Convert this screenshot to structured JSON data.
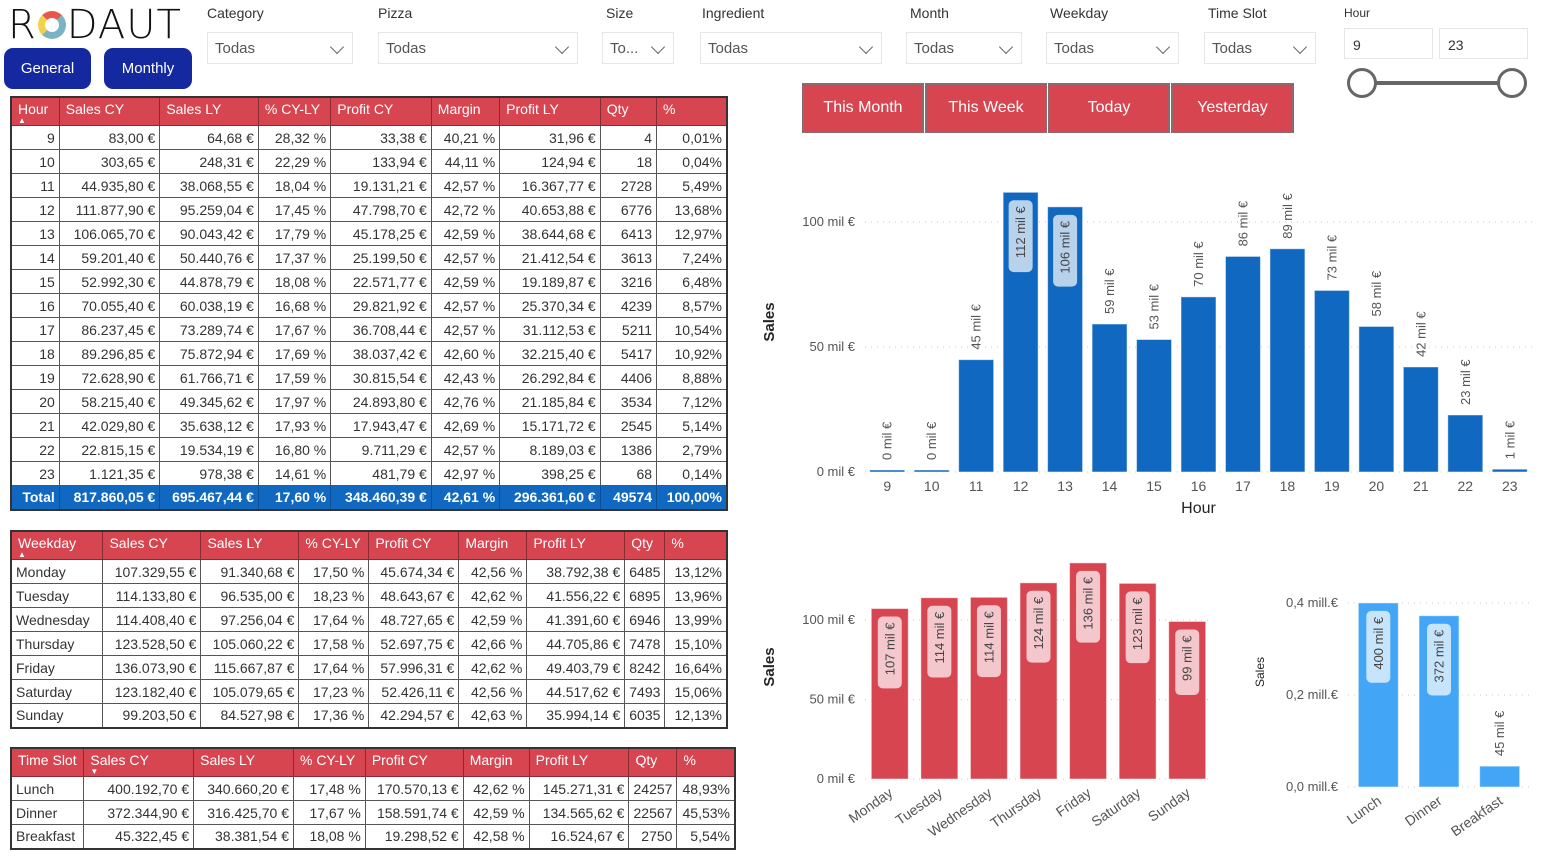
{
  "app": {
    "logo_prefix": "R",
    "logo_suffix": "DAUT"
  },
  "nav": {
    "general": "General",
    "monthly": "Monthly"
  },
  "filters": [
    {
      "label": "Category",
      "value": "Todas"
    },
    {
      "label": "Pizza",
      "value": "Todas"
    },
    {
      "label": "Size",
      "value": "To..."
    },
    {
      "label": "Ingredient",
      "value": "Todas"
    },
    {
      "label": "Month",
      "value": "Todas"
    },
    {
      "label": "Weekday",
      "value": "Todas"
    },
    {
      "label": "Time Slot",
      "value": "Todas"
    }
  ],
  "hour_slider": {
    "label": "Hour",
    "min_value": "9",
    "max_value": "23",
    "min": 9,
    "max": 23
  },
  "quick_buttons": [
    "This Month",
    "This Week",
    "Today",
    "Yesterday"
  ],
  "hour_table": {
    "columns": [
      "Hour",
      "Sales CY",
      "Sales LY",
      "% CY-LY",
      "Profit CY",
      "Margin",
      "Profit LY",
      "Qty",
      "%"
    ],
    "sort_indicator": "▲",
    "rows": [
      [
        "9",
        "83,00 €",
        "64,68 €",
        "28,32 %",
        "33,38 €",
        "40,21 %",
        "31,96 €",
        "4",
        "0,01%"
      ],
      [
        "10",
        "303,65 €",
        "248,31 €",
        "22,29 %",
        "133,94 €",
        "44,11 %",
        "124,94 €",
        "18",
        "0,04%"
      ],
      [
        "11",
        "44.935,80 €",
        "38.068,55 €",
        "18,04 %",
        "19.131,21 €",
        "42,57 %",
        "16.367,77 €",
        "2728",
        "5,49%"
      ],
      [
        "12",
        "111.877,90 €",
        "95.259,04 €",
        "17,45 %",
        "47.798,70 €",
        "42,72 %",
        "40.653,88 €",
        "6776",
        "13,68%"
      ],
      [
        "13",
        "106.065,70 €",
        "90.043,42 €",
        "17,79 %",
        "45.178,25 €",
        "42,59 %",
        "38.644,68 €",
        "6413",
        "12,97%"
      ],
      [
        "14",
        "59.201,40 €",
        "50.440,76 €",
        "17,37 %",
        "25.199,50 €",
        "42,57 %",
        "21.412,54 €",
        "3613",
        "7,24%"
      ],
      [
        "15",
        "52.992,30 €",
        "44.878,79 €",
        "18,08 %",
        "22.571,77 €",
        "42,59 %",
        "19.189,87 €",
        "3216",
        "6,48%"
      ],
      [
        "16",
        "70.055,40 €",
        "60.038,19 €",
        "16,68 %",
        "29.821,92 €",
        "42,57 %",
        "25.370,34 €",
        "4239",
        "8,57%"
      ],
      [
        "17",
        "86.237,45 €",
        "73.289,74 €",
        "17,67 %",
        "36.708,44 €",
        "42,57 %",
        "31.112,53 €",
        "5211",
        "10,54%"
      ],
      [
        "18",
        "89.296,85 €",
        "75.872,94 €",
        "17,69 %",
        "38.037,42 €",
        "42,60 %",
        "32.215,40 €",
        "5417",
        "10,92%"
      ],
      [
        "19",
        "72.628,90 €",
        "61.766,71 €",
        "17,59 %",
        "30.815,54 €",
        "42,43 %",
        "26.292,84 €",
        "4406",
        "8,88%"
      ],
      [
        "20",
        "58.215,40 €",
        "49.345,62 €",
        "17,97 %",
        "24.893,80 €",
        "42,76 %",
        "21.185,84 €",
        "3534",
        "7,12%"
      ],
      [
        "21",
        "42.029,80 €",
        "35.638,12 €",
        "17,93 %",
        "17.943,47 €",
        "42,69 %",
        "15.171,72 €",
        "2545",
        "5,14%"
      ],
      [
        "22",
        "22.815,15 €",
        "19.534,19 €",
        "16,80 %",
        "9.711,29 €",
        "42,57 %",
        "8.189,03 €",
        "1386",
        "2,79%"
      ],
      [
        "23",
        "1.121,35 €",
        "978,38 €",
        "14,61 %",
        "481,79 €",
        "42,97 %",
        "398,25 €",
        "68",
        "0,14%"
      ]
    ],
    "total": [
      "Total",
      "817.860,05 €",
      "695.467,44 €",
      "17,60 %",
      "348.460,39 €",
      "42,61 %",
      "296.361,60 €",
      "49574",
      "100,00%"
    ]
  },
  "weekday_table": {
    "columns": [
      "Weekday",
      "Sales CY",
      "Sales LY",
      "% CY-LY",
      "Profit CY",
      "Margin",
      "Profit LY",
      "Qty",
      "%"
    ],
    "sort_indicator": "▲",
    "rows": [
      [
        "Monday",
        "107.329,55 €",
        "91.340,68 €",
        "17,50 %",
        "45.674,34 €",
        "42,56 %",
        "38.792,38 €",
        "6485",
        "13,12%"
      ],
      [
        "Tuesday",
        "114.133,80 €",
        "96.535,00 €",
        "18,23 %",
        "48.643,67 €",
        "42,62 %",
        "41.556,22 €",
        "6895",
        "13,96%"
      ],
      [
        "Wednesday",
        "114.408,40 €",
        "97.256,04 €",
        "17,64 %",
        "48.727,65 €",
        "42,59 %",
        "41.391,60 €",
        "6946",
        "13,99%"
      ],
      [
        "Thursday",
        "123.528,50 €",
        "105.060,22 €",
        "17,58 %",
        "52.697,75 €",
        "42,66 %",
        "44.705,86 €",
        "7478",
        "15,10%"
      ],
      [
        "Friday",
        "136.073,90 €",
        "115.667,87 €",
        "17,64 %",
        "57.996,31 €",
        "42,62 %",
        "49.403,79 €",
        "8242",
        "16,64%"
      ],
      [
        "Saturday",
        "123.182,40 €",
        "105.079,65 €",
        "17,23 %",
        "52.426,11 €",
        "42,56 %",
        "44.517,62 €",
        "7493",
        "15,06%"
      ],
      [
        "Sunday",
        "99.203,50 €",
        "84.527,98 €",
        "17,36 %",
        "42.294,57 €",
        "42,63 %",
        "35.994,14 €",
        "6035",
        "12,13%"
      ]
    ]
  },
  "timeslot_table": {
    "columns": [
      "Time Slot",
      "Sales CY",
      "Sales LY",
      "% CY-LY",
      "Profit CY",
      "Margin",
      "Profit LY",
      "Qty",
      "%"
    ],
    "sort_indicator": "▼",
    "rows": [
      [
        "Lunch",
        "400.192,70 €",
        "340.660,20 €",
        "17,48 %",
        "170.570,13 €",
        "42,62 %",
        "145.271,31 €",
        "24257",
        "48,93%"
      ],
      [
        "Dinner",
        "372.344,90 €",
        "316.425,70 €",
        "17,67 %",
        "158.591,74 €",
        "42,59 %",
        "134.565,62 €",
        "22567",
        "45,53%"
      ],
      [
        "Breakfast",
        "45.322,45 €",
        "38.381,54 €",
        "18,08 %",
        "19.298,52 €",
        "42,58 %",
        "16.524,67 €",
        "2750",
        "5,54%"
      ]
    ]
  },
  "chart_data": [
    {
      "id": "hour",
      "type": "bar",
      "title": "",
      "xlabel": "Hour",
      "ylabel": "Sales",
      "categories": [
        "9",
        "10",
        "11",
        "12",
        "13",
        "14",
        "15",
        "16",
        "17",
        "18",
        "19",
        "20",
        "21",
        "22",
        "23"
      ],
      "values": [
        83.0,
        303.65,
        44935.8,
        111877.9,
        106065.7,
        59201.4,
        52992.3,
        70055.4,
        86237.45,
        89296.85,
        72628.9,
        58215.4,
        42029.8,
        22815.15,
        1121.35
      ],
      "labels": [
        "0 mil €",
        "0 mil €",
        "45 mil €",
        "112 mil €",
        "106 mil €",
        "59 mil €",
        "53 mil €",
        "70 mil €",
        "86 mil €",
        "89 mil €",
        "73 mil €",
        "58 mil €",
        "42 mil €",
        "23 mil €",
        "1 mil €"
      ],
      "yticks": [
        0,
        50000,
        100000
      ],
      "ytick_labels": [
        "0 mil €",
        "50 mil €",
        "100 mil €"
      ],
      "ylim": [
        0,
        112000
      ],
      "color": "#1168c0",
      "grid": true
    },
    {
      "id": "weekday",
      "type": "bar",
      "title": "",
      "xlabel": "",
      "ylabel": "Sales",
      "categories": [
        "Monday",
        "Tuesday",
        "Wednesday",
        "Thursday",
        "Friday",
        "Saturday",
        "Sunday"
      ],
      "values": [
        107329.55,
        114133.8,
        114408.4,
        123528.5,
        136073.9,
        123182.4,
        99203.5
      ],
      "labels": [
        "107 mil €",
        "114 mil €",
        "114 mil €",
        "124 mil €",
        "136 mil €",
        "123 mil €",
        "99 mil €"
      ],
      "yticks": [
        0,
        50000,
        100000
      ],
      "ytick_labels": [
        "0 mil €",
        "50 mil €",
        "100 mil €"
      ],
      "ylim": [
        0,
        136000
      ],
      "color": "#d64550",
      "grid": true
    },
    {
      "id": "timeslot",
      "type": "bar",
      "title": "",
      "xlabel": "",
      "ylabel": "Sales",
      "categories": [
        "Lunch",
        "Dinner",
        "Breakfast"
      ],
      "values": [
        400192.7,
        372344.9,
        45322.45
      ],
      "labels": [
        "400 mil €",
        "372 mil €",
        "45 mil €"
      ],
      "yticks": [
        0,
        200000,
        400000
      ],
      "ytick_labels": [
        "0,0 mill.€",
        "0,2 mill.€",
        "0,4 mill.€"
      ],
      "ylim": [
        0,
        400000
      ],
      "color": "#42a5f5",
      "grid": true
    }
  ]
}
